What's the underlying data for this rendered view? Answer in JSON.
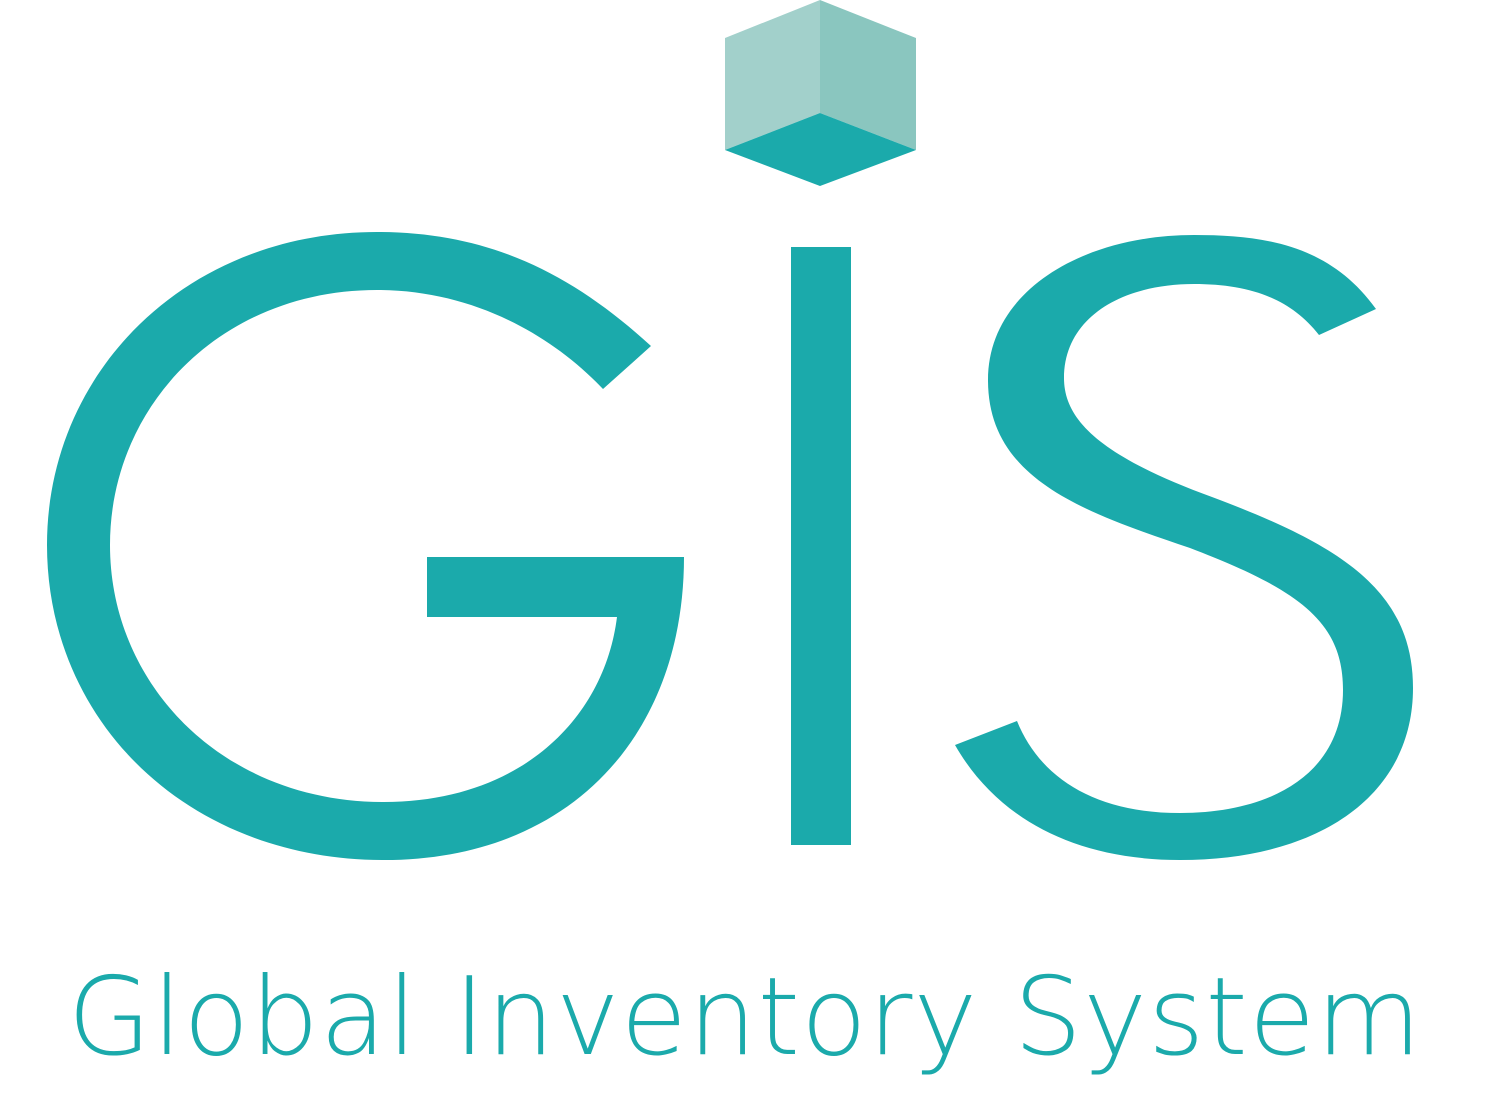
{
  "logo": {
    "wordmark": "GIS",
    "tagline": "Global Inventory System",
    "colors": {
      "primary": "#1BAAAB",
      "cube_left": "#A2D0CB",
      "cube_right": "#8AC6BF",
      "cube_bottom": "#1BAAAB"
    },
    "icons": [
      "cube-icon"
    ]
  }
}
